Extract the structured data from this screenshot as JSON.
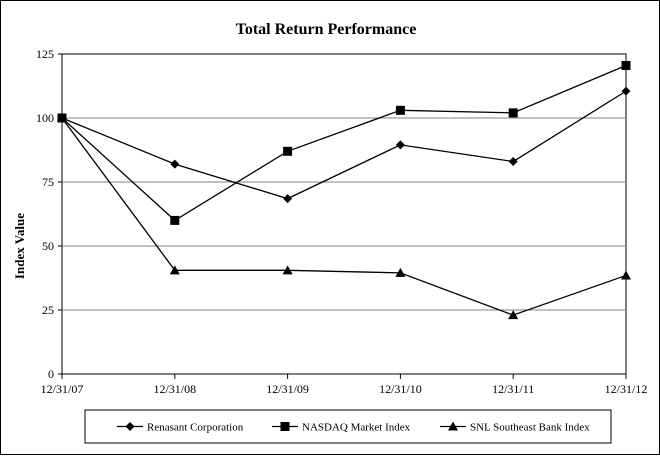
{
  "chart_data": {
    "type": "line",
    "title": "Total Return Performance",
    "xlabel": "",
    "ylabel": "Index Value",
    "categories": [
      "12/31/07",
      "12/31/08",
      "12/31/09",
      "12/31/10",
      "12/31/11",
      "12/31/12"
    ],
    "y_ticks": [
      "0",
      "25",
      "50",
      "75",
      "100",
      "125"
    ],
    "ylim": [
      0,
      125
    ],
    "grid": "horizontal",
    "legend_position": "bottom",
    "series": [
      {
        "name": "Renasant Corporation",
        "marker": "diamond",
        "values": [
          100,
          82,
          68.5,
          89.5,
          83,
          110.5
        ]
      },
      {
        "name": "NASDAQ Market Index",
        "marker": "square",
        "values": [
          100,
          60,
          87,
          103,
          102,
          120.5
        ]
      },
      {
        "name": "SNL Southeast Bank Index",
        "marker": "triangle",
        "values": [
          100,
          40.5,
          40.5,
          39.5,
          23,
          38.5
        ]
      }
    ]
  }
}
